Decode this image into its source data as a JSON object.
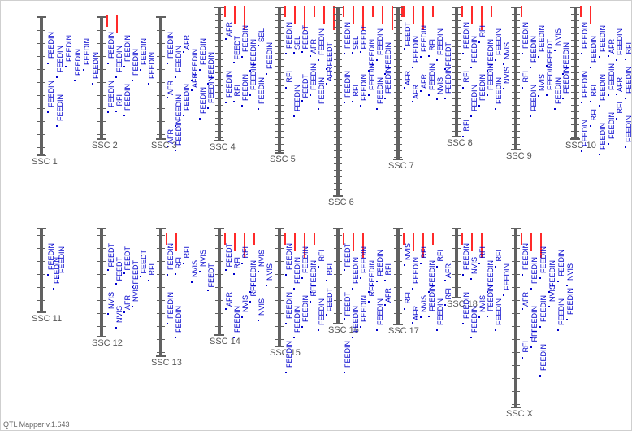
{
  "app": {
    "footer": "QTL Mapper v.1.643"
  },
  "colors": {
    "chromosome": "#616161",
    "trait": "#0000cc",
    "marker": "#ff2a2a",
    "label": "#555555"
  },
  "chromosomes": [
    {
      "name": "SSC 1",
      "traits": [
        "FEEDIN",
        "FEEDIN",
        "FEEDIN",
        "FEEDIN",
        "FEEDIN",
        "FEEDIN",
        "FEEDIN",
        "FEEDIN"
      ],
      "markers": 0
    },
    {
      "name": "SSC 2",
      "traits": [
        "FEEDIN",
        "FEEDIN",
        "FEEDIN",
        "FEEDIN",
        "FEEDIN",
        "FEEDIN",
        "FEEDIN",
        "RFI",
        "FEEDIN"
      ],
      "markers": 2
    },
    {
      "name": "SSC 3",
      "traits": [
        "FEEDIN",
        "FEEDIN",
        "AFR",
        "FEEDIN",
        "FEEDIN",
        "FEEDIN",
        "AFR",
        "FEEDIN",
        "FEEDIN",
        "AFR",
        "FEEDIN",
        "FEEDIN",
        "AFR",
        "FEEDIN"
      ],
      "markers": 0
    },
    {
      "name": "SSC 4",
      "traits": [
        "AFR",
        "FEEDT",
        "FEEDIN",
        "FEEDIN",
        "SEL",
        "FEEDIN",
        "FEEDIN",
        "RFI",
        "FEEDIN",
        "FEEDIN",
        "FEEDIN"
      ],
      "markers": 3
    },
    {
      "name": "SSC 5",
      "traits": [
        "FEEDIN",
        "SEL",
        "FEEDT",
        "AFR",
        "FEEDIN",
        "FEEDT",
        "RFI",
        "FEEDIN",
        "FEEDT",
        "FEEDIN",
        "FEEDIN",
        "AFR"
      ],
      "markers": 6
    },
    {
      "name": "SSC 6",
      "traits": [
        "FEEDIN",
        "SEL",
        "FEEDT",
        "FEEDIN",
        "FEEDIN",
        "FEEDIN",
        "FEEDIN",
        "RFI",
        "FEEDIN",
        "FEEDIN",
        "FEEDIN",
        "FEEDIN"
      ],
      "markers": 7
    },
    {
      "name": "SSC 7",
      "traits": [
        "FEEDT",
        "FEEDIN",
        "FEEDIN",
        "RFI",
        "FEEDIN",
        "FEEDT",
        "AFR",
        "AFR",
        "AFR",
        "FEEDIN",
        "NVIS",
        "FEEDIN"
      ],
      "markers": 4
    },
    {
      "name": "SSC 8",
      "traits": [
        "FEEDIN",
        "FEEDIN",
        "RFI",
        "FEEDIN",
        "FEEDIN",
        "NVIS",
        "RFI",
        "FEEDIN",
        "FEEDIN",
        "FEEDIN",
        "FEEDIN",
        "NVIS",
        "RFI"
      ],
      "markers": 4
    },
    {
      "name": "SSC 9",
      "traits": [
        "FEEDIN",
        "FEEDIN",
        "FEEDIN",
        "FEEDT",
        "NVIS",
        "FEEDIN",
        "RFI",
        "FEEDIN",
        "NVIS",
        "FEEDIN",
        "FEEDIN",
        "FEEDIN"
      ],
      "markers": 1
    },
    {
      "name": "SSC 10",
      "traits": [
        "FEEDIN",
        "FEEDIN",
        "FEEDIN",
        "AFR",
        "FEEDIN",
        "RFI",
        "FEEDIN",
        "RFI",
        "FEEDIN",
        "FEEDIN",
        "AFR",
        "FEEDIN",
        "FEEDIN",
        "RFI",
        "FEEDIN",
        "FEEDIN",
        "RFI",
        "FEEDIN"
      ],
      "markers": 2
    },
    {
      "name": "SSC 11",
      "traits": [
        "FEEDIN",
        "FEEDIN",
        "FEEDIN"
      ],
      "markers": 0
    },
    {
      "name": "SSC 12",
      "traits": [
        "FEEDT",
        "FEEDT",
        "FEEDT",
        "FEEDT",
        "FEEDT",
        "RFI",
        "NVIS",
        "NVIS",
        "AFR",
        "NVIS"
      ],
      "markers": 0
    },
    {
      "name": "SSC 13",
      "traits": [
        "FEEDIN",
        "RFI",
        "RFI",
        "NVIS",
        "NVIS",
        "FEEDT",
        "FEEDIN",
        "FEEDIN"
      ],
      "markers": 2
    },
    {
      "name": "SSC 14",
      "traits": [
        "FEEDT",
        "RFI",
        "RFI",
        "FEEDIN",
        "NVIS",
        "NVIS",
        "AFR",
        "FEEDIN",
        "NVIS",
        "RFI",
        "NVIS"
      ],
      "markers": 4
    },
    {
      "name": "SSC 15",
      "traits": [
        "FEEDIN",
        "FEEDIN",
        "FEEDIN",
        "FEEDIN",
        "RFI",
        "RFI",
        "FEEDIN",
        "FEEDIN",
        "FEEDIN",
        "RFI",
        "FEEDIN",
        "FEEDT",
        "FEEDIN"
      ],
      "markers": 4
    },
    {
      "name": "SSC 16",
      "traits": [
        "FEEDT",
        "FEEDIN",
        "FEEDIN",
        "FEEDIN",
        "FEEDIN",
        "RFI",
        "FEEDT",
        "FEEDIN",
        "FEEDIN",
        "RFI",
        "FEEDIN",
        "AFR",
        "FEEDIN"
      ],
      "markers": 3
    },
    {
      "name": "SSC 17",
      "traits": [
        "NVIS",
        "FEEDIN",
        "RFI",
        "FEEDIN",
        "RFI",
        "AFR",
        "RFI",
        "AFR",
        "NVIS",
        "FEEDIN",
        "FEEDIN",
        "RFI"
      ],
      "markers": 4
    },
    {
      "name": "SSC 18",
      "traits": [
        "FEEDIN",
        "NVIS",
        "RFI",
        "FEEDIN",
        "RFI",
        "FEEDIN",
        "FEEDIN",
        "FEEDIN",
        "NVIS",
        "FEEDIN",
        "FEEDIN"
      ],
      "markers": 3
    },
    {
      "name": "SSC X",
      "traits": [
        "FEEDIN",
        "FEEDIN",
        "FEEDIN",
        "FEEDIN",
        "FEEDIN",
        "NVIS",
        "AFR",
        "FEEDIN",
        "FEEDIN",
        "NVIS",
        "FEEDIN",
        "FEEDIN",
        "RFI",
        "RFI",
        "FEEDIN"
      ],
      "markers": 3
    }
  ]
}
